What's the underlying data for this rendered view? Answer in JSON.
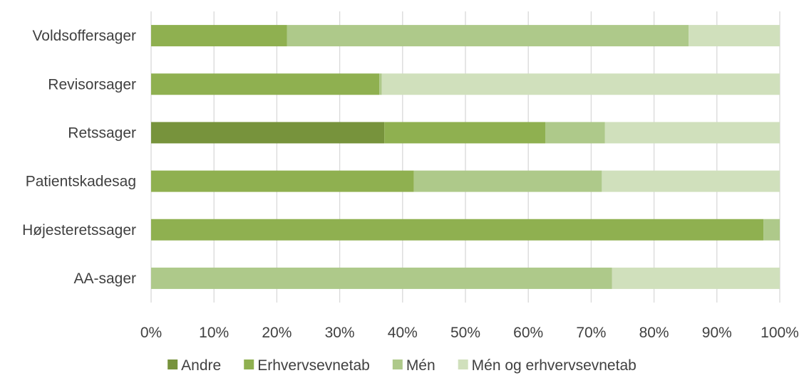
{
  "chart_data": {
    "type": "bar",
    "orientation": "horizontal",
    "stacked": "percent",
    "categories": [
      "Voldsoffersager",
      "Revisorsager",
      "Retssager",
      "Patientskadesag",
      "Højesteretssager",
      "AA-sager"
    ],
    "series": [
      {
        "name": "Andre",
        "color": "#77933c",
        "values": [
          0,
          0,
          37.1,
          0,
          0,
          0
        ]
      },
      {
        "name": "Erhvervsevnetab",
        "color": "#8fb050",
        "values": [
          21.6,
          36.3,
          25.6,
          41.8,
          97.4,
          0
        ]
      },
      {
        "name": "Mén",
        "color": "#aec98a",
        "values": [
          63.9,
          0.4,
          9.5,
          29.9,
          2.6,
          73.3
        ]
      },
      {
        "name": "Mén og erhvervsevnetab",
        "color": "#d0e0bc",
        "values": [
          14.5,
          63.3,
          27.8,
          28.3,
          0,
          26.7
        ]
      }
    ],
    "xlim": [
      0,
      100
    ],
    "xticks": [
      "0%",
      "10%",
      "20%",
      "30%",
      "40%",
      "50%",
      "60%",
      "70%",
      "80%",
      "90%",
      "100%"
    ],
    "grid": "vertical",
    "legend_position": "bottom",
    "title": "",
    "xlabel": "",
    "ylabel": ""
  }
}
